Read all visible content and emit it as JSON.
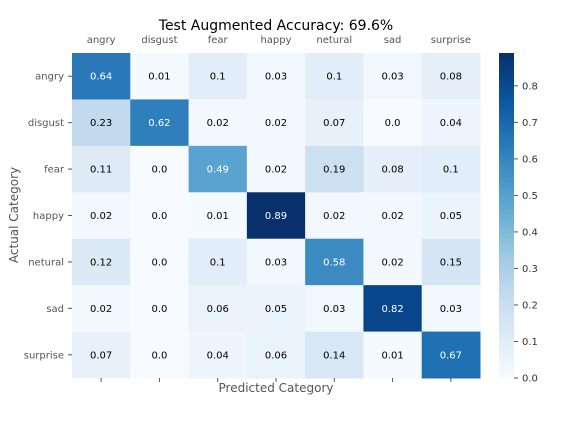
{
  "chart_data": {
    "type": "heatmap",
    "title": "Test Augmented Accuracy: 69.6%",
    "xlabel": "Predicted Category",
    "ylabel": "Actual Category",
    "x_categories": [
      "angry",
      "disgust",
      "fear",
      "happy",
      "netural",
      "sad",
      "surprise"
    ],
    "y_categories": [
      "angry",
      "disgust",
      "fear",
      "happy",
      "netural",
      "sad",
      "surprise"
    ],
    "values": [
      [
        0.64,
        0.01,
        0.1,
        0.03,
        0.1,
        0.03,
        0.08
      ],
      [
        0.23,
        0.62,
        0.02,
        0.02,
        0.07,
        0.0,
        0.04
      ],
      [
        0.11,
        0.0,
        0.49,
        0.02,
        0.19,
        0.08,
        0.1
      ],
      [
        0.02,
        0.0,
        0.01,
        0.89,
        0.02,
        0.02,
        0.05
      ],
      [
        0.12,
        0.0,
        0.1,
        0.03,
        0.58,
        0.02,
        0.15
      ],
      [
        0.02,
        0.0,
        0.06,
        0.05,
        0.03,
        0.82,
        0.03
      ],
      [
        0.07,
        0.0,
        0.04,
        0.06,
        0.14,
        0.01,
        0.67
      ]
    ],
    "value_labels": [
      [
        "0.64",
        "0.01",
        "0.1",
        "0.03",
        "0.1",
        "0.03",
        "0.08"
      ],
      [
        "0.23",
        "0.62",
        "0.02",
        "0.02",
        "0.07",
        "0.0",
        "0.04"
      ],
      [
        "0.11",
        "0.0",
        "0.49",
        "0.02",
        "0.19",
        "0.08",
        "0.1"
      ],
      [
        "0.02",
        "0.0",
        "0.01",
        "0.89",
        "0.02",
        "0.02",
        "0.05"
      ],
      [
        "0.12",
        "0.0",
        "0.1",
        "0.03",
        "0.58",
        "0.02",
        "0.15"
      ],
      [
        "0.02",
        "0.0",
        "0.06",
        "0.05",
        "0.03",
        "0.82",
        "0.03"
      ],
      [
        "0.07",
        "0.0",
        "0.04",
        "0.06",
        "0.14",
        "0.01",
        "0.67"
      ]
    ],
    "colormap": "Blues",
    "colorbar": {
      "range": [
        0.0,
        0.89
      ],
      "ticks": [
        0.0,
        0.1,
        0.2,
        0.3,
        0.4,
        0.5,
        0.6,
        0.7,
        0.8
      ],
      "tick_labels": [
        "0.0",
        "0.1",
        "0.2",
        "0.3",
        "0.4",
        "0.5",
        "0.6",
        "0.7",
        "0.8"
      ]
    },
    "x_tick_position": "top",
    "grid": false
  }
}
